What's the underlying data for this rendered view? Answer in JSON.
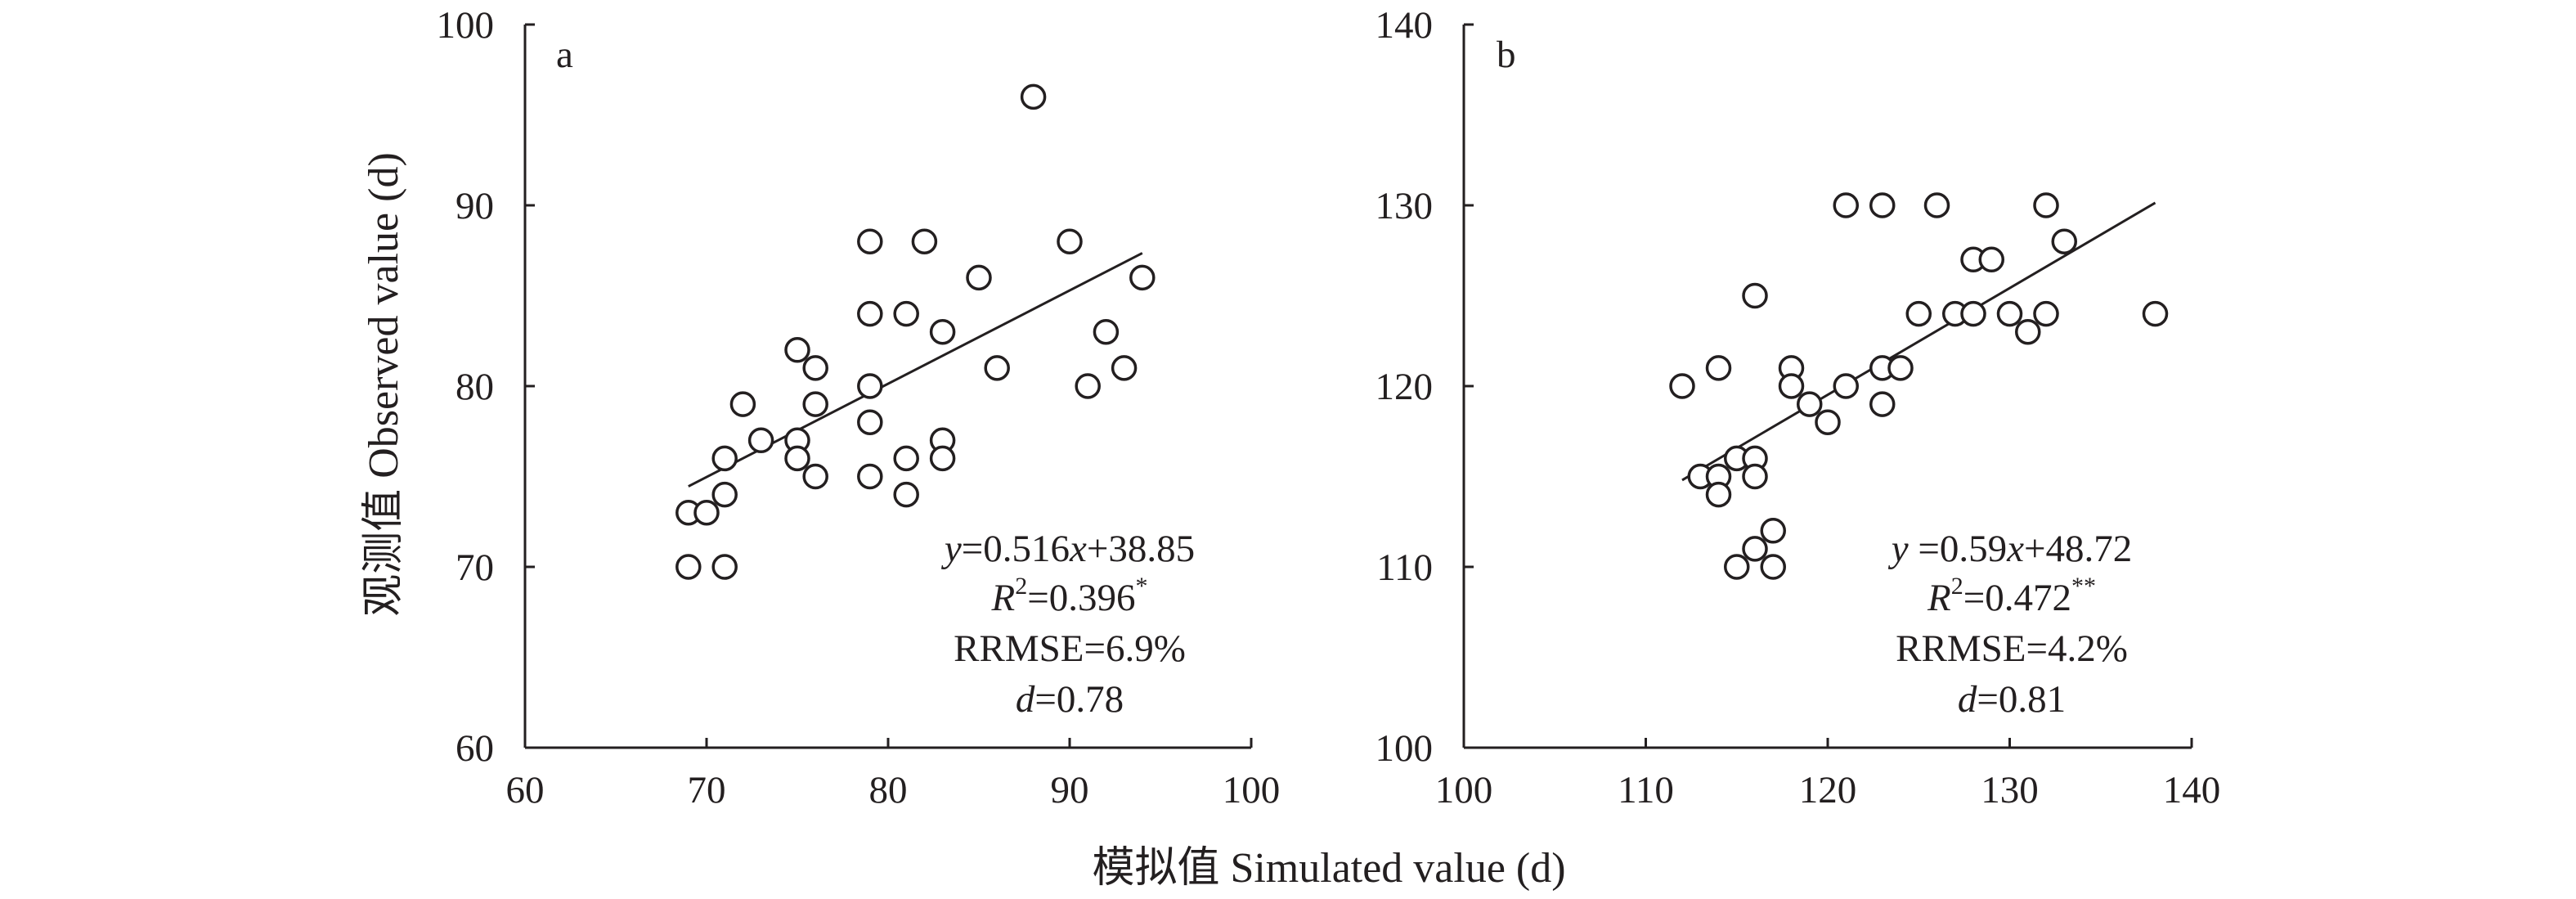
{
  "chart_data": [
    {
      "type": "scatter",
      "panel_label": "a",
      "xlim": [
        60,
        100
      ],
      "ylim": [
        60,
        100
      ],
      "xticks": [
        "60",
        "70",
        "80",
        "90",
        "100"
      ],
      "yticks": [
        "60",
        "70",
        "80",
        "90",
        "100"
      ],
      "points": [
        [
          69,
          73
        ],
        [
          69,
          70
        ],
        [
          70,
          73
        ],
        [
          71,
          76
        ],
        [
          71,
          74
        ],
        [
          71,
          70
        ],
        [
          72,
          79
        ],
        [
          73,
          77
        ],
        [
          75,
          82
        ],
        [
          75,
          77
        ],
        [
          75,
          76
        ],
        [
          76,
          81
        ],
        [
          76,
          79
        ],
        [
          76,
          75
        ],
        [
          79,
          88
        ],
        [
          79,
          84
        ],
        [
          79,
          80
        ],
        [
          79,
          78
        ],
        [
          79,
          75
        ],
        [
          81,
          84
        ],
        [
          81,
          76
        ],
        [
          81,
          74
        ],
        [
          82,
          88
        ],
        [
          83,
          83
        ],
        [
          83,
          77
        ],
        [
          83,
          76
        ],
        [
          85,
          86
        ],
        [
          86,
          81
        ],
        [
          88,
          96
        ],
        [
          90,
          88
        ],
        [
          91,
          80
        ],
        [
          92,
          83
        ],
        [
          93,
          81
        ],
        [
          94,
          86
        ]
      ],
      "fit": {
        "slope": 0.516,
        "intercept": 38.85,
        "x_range": [
          69,
          94
        ]
      },
      "grid": false,
      "equation": {
        "y": "y",
        "eq": "=0.516",
        "x": "x",
        "rest": "+38.85"
      },
      "r2": {
        "r": "R",
        "sup": "2",
        "val": "=0.396",
        "sig": "*"
      },
      "rrmse": "RRMSE=6.9%",
      "d": {
        "d": "d",
        "val": "=0.78"
      }
    },
    {
      "type": "scatter",
      "panel_label": "b",
      "xlim": [
        100,
        140
      ],
      "ylim": [
        100,
        140
      ],
      "xticks": [
        "100",
        "110",
        "120",
        "130",
        "140"
      ],
      "yticks": [
        "100",
        "110",
        "120",
        "130",
        "140"
      ],
      "points": [
        [
          112,
          120
        ],
        [
          113,
          115
        ],
        [
          114,
          121
        ],
        [
          114,
          115
        ],
        [
          114,
          114
        ],
        [
          115,
          116
        ],
        [
          115,
          110
        ],
        [
          116,
          125
        ],
        [
          116,
          116
        ],
        [
          116,
          115
        ],
        [
          116,
          111
        ],
        [
          117,
          112
        ],
        [
          117,
          110
        ],
        [
          118,
          121
        ],
        [
          118,
          120
        ],
        [
          119,
          119
        ],
        [
          120,
          118
        ],
        [
          121,
          130
        ],
        [
          121,
          120
        ],
        [
          123,
          130
        ],
        [
          123,
          121
        ],
        [
          123,
          119
        ],
        [
          124,
          121
        ],
        [
          125,
          124
        ],
        [
          126,
          130
        ],
        [
          127,
          124
        ],
        [
          128,
          127
        ],
        [
          128,
          124
        ],
        [
          129,
          127
        ],
        [
          130,
          124
        ],
        [
          131,
          123
        ],
        [
          132,
          130
        ],
        [
          132,
          124
        ],
        [
          133,
          128
        ],
        [
          138,
          124
        ]
      ],
      "fit": {
        "slope": 0.59,
        "intercept": 48.72,
        "x_range": [
          112,
          138
        ]
      },
      "grid": false,
      "equation": {
        "y": "y",
        "eq": " =0.59",
        "x": "x",
        "rest": "+48.72"
      },
      "r2": {
        "r": "R",
        "sup": "2",
        "val": "=0.472",
        "sig": "**"
      },
      "rrmse": "RRMSE=4.2%",
      "d": {
        "d": "d",
        "val": "=0.81"
      }
    }
  ],
  "labels": {
    "y_axis": "观测值 Observed value (d)",
    "x_axis": "模拟值 Simulated value (d)"
  }
}
